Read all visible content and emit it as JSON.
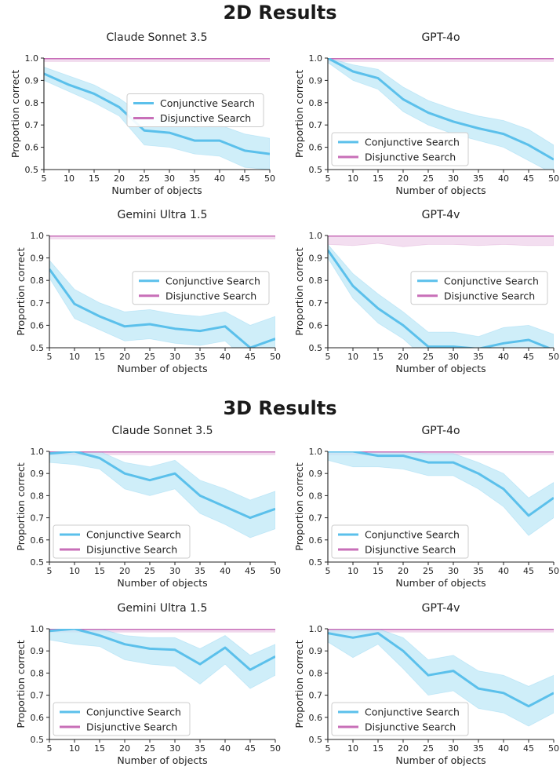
{
  "sections": [
    {
      "title": "2D Results"
    },
    {
      "title": "3D Results"
    }
  ],
  "colors": {
    "conjunctive": "#5bc0eb",
    "conjunctive_band": "#bfe8f7",
    "disjunctive": "#c86fb8",
    "disjunctive_band": "#efd3eb"
  },
  "chart_data": [
    {
      "type": "line",
      "section": "2D Results",
      "title": "Claude Sonnet 3.5",
      "xlabel": "Number of objects",
      "ylabel": "Proportion correct",
      "x": [
        5,
        10,
        15,
        20,
        25,
        30,
        35,
        40,
        45,
        50
      ],
      "xticks": [
        5,
        10,
        15,
        20,
        25,
        30,
        35,
        40,
        45,
        50
      ],
      "yticks": [
        "0.5",
        "0.6",
        "0.7",
        "0.8",
        "0.9",
        "1.0"
      ],
      "ylim": [
        0.5,
        1.0
      ],
      "legend": "center-right",
      "series": [
        {
          "name": "Conjunctive Search",
          "color": "#5bc0eb",
          "values": [
            0.93,
            0.88,
            0.84,
            0.78,
            0.675,
            0.665,
            0.63,
            0.63,
            0.585,
            0.57
          ],
          "lower": [
            0.9,
            0.85,
            0.8,
            0.74,
            0.61,
            0.6,
            0.57,
            0.56,
            0.51,
            0.5
          ],
          "upper": [
            0.96,
            0.92,
            0.88,
            0.82,
            0.74,
            0.73,
            0.69,
            0.7,
            0.66,
            0.64
          ]
        },
        {
          "name": "Disjunctive Search",
          "color": "#c86fb8",
          "values": [
            1.0,
            1.0,
            1.0,
            1.0,
            1.0,
            1.0,
            1.0,
            1.0,
            1.0,
            1.0
          ],
          "lower": [
            0.985,
            0.985,
            0.985,
            0.985,
            0.985,
            0.985,
            0.985,
            0.985,
            0.985,
            0.985
          ],
          "upper": [
            1.0,
            1.0,
            1.0,
            1.0,
            1.0,
            1.0,
            1.0,
            1.0,
            1.0,
            1.0
          ]
        }
      ]
    },
    {
      "type": "line",
      "section": "2D Results",
      "title": "GPT-4o",
      "xlabel": "Number of objects",
      "ylabel": "Proportion correct",
      "x": [
        5,
        10,
        15,
        20,
        25,
        30,
        35,
        40,
        45,
        50
      ],
      "xticks": [
        5,
        10,
        15,
        20,
        25,
        30,
        35,
        40,
        45,
        50
      ],
      "yticks": [
        "0.5",
        "0.6",
        "0.7",
        "0.8",
        "0.9",
        "1.0"
      ],
      "ylim": [
        0.5,
        1.0
      ],
      "legend": "bottom-left",
      "series": [
        {
          "name": "Conjunctive Search",
          "color": "#5bc0eb",
          "values": [
            1.0,
            0.94,
            0.91,
            0.815,
            0.755,
            0.715,
            0.685,
            0.66,
            0.61,
            0.545
          ],
          "lower": [
            0.98,
            0.9,
            0.86,
            0.76,
            0.7,
            0.66,
            0.63,
            0.6,
            0.54,
            0.48
          ],
          "upper": [
            1.0,
            0.97,
            0.95,
            0.87,
            0.81,
            0.77,
            0.74,
            0.72,
            0.68,
            0.61
          ]
        },
        {
          "name": "Disjunctive Search",
          "color": "#c86fb8",
          "values": [
            1.0,
            1.0,
            1.0,
            1.0,
            1.0,
            1.0,
            1.0,
            1.0,
            1.0,
            1.0
          ],
          "lower": [
            0.985,
            0.985,
            0.985,
            0.985,
            0.985,
            0.985,
            0.985,
            0.985,
            0.985,
            0.985
          ],
          "upper": [
            1.0,
            1.0,
            1.0,
            1.0,
            1.0,
            1.0,
            1.0,
            1.0,
            1.0,
            1.0
          ]
        }
      ]
    },
    {
      "type": "line",
      "section": "2D Results",
      "title": "Gemini Ultra 1.5",
      "xlabel": "Number of objects",
      "ylabel": "Proportion correct",
      "x": [
        5,
        10,
        15,
        20,
        25,
        30,
        35,
        40,
        45,
        50
      ],
      "xticks": [
        5,
        10,
        15,
        20,
        25,
        30,
        35,
        40,
        45,
        50
      ],
      "yticks": [
        "0.5",
        "0.6",
        "0.7",
        "0.8",
        "0.9",
        "1.0"
      ],
      "ylim": [
        0.5,
        1.0
      ],
      "legend": "center-right",
      "series": [
        {
          "name": "Conjunctive Search",
          "color": "#5bc0eb",
          "values": [
            0.85,
            0.695,
            0.64,
            0.595,
            0.605,
            0.585,
            0.575,
            0.595,
            0.5,
            0.54
          ],
          "lower": [
            0.81,
            0.63,
            0.58,
            0.53,
            0.54,
            0.52,
            0.51,
            0.53,
            0.43,
            0.47
          ],
          "upper": [
            0.89,
            0.76,
            0.7,
            0.66,
            0.67,
            0.65,
            0.64,
            0.66,
            0.6,
            0.64
          ]
        },
        {
          "name": "Disjunctive Search",
          "color": "#c86fb8",
          "values": [
            1.0,
            1.0,
            1.0,
            1.0,
            1.0,
            1.0,
            1.0,
            1.0,
            1.0,
            1.0
          ],
          "lower": [
            0.985,
            0.985,
            0.985,
            0.985,
            0.985,
            0.985,
            0.985,
            0.985,
            0.985,
            0.985
          ],
          "upper": [
            1.0,
            1.0,
            1.0,
            1.0,
            1.0,
            1.0,
            1.0,
            1.0,
            1.0,
            1.0
          ]
        }
      ]
    },
    {
      "type": "line",
      "section": "2D Results",
      "title": "GPT-4v",
      "xlabel": "Number of objects",
      "ylabel": "Proportion correct",
      "x": [
        5,
        10,
        15,
        20,
        25,
        30,
        35,
        40,
        45,
        50
      ],
      "xticks": [
        5,
        10,
        15,
        20,
        25,
        30,
        35,
        40,
        45,
        50
      ],
      "yticks": [
        "0.5",
        "0.6",
        "0.7",
        "0.8",
        "0.9",
        "1.0"
      ],
      "ylim": [
        0.5,
        1.0
      ],
      "legend": "center-right",
      "series": [
        {
          "name": "Conjunctive Search",
          "color": "#5bc0eb",
          "values": [
            0.935,
            0.775,
            0.675,
            0.6,
            0.505,
            0.505,
            0.495,
            0.52,
            0.535,
            0.49
          ],
          "lower": [
            0.9,
            0.72,
            0.61,
            0.54,
            0.44,
            0.44,
            0.43,
            0.45,
            0.47,
            0.43
          ],
          "upper": [
            0.96,
            0.83,
            0.74,
            0.66,
            0.57,
            0.57,
            0.55,
            0.59,
            0.6,
            0.56
          ]
        },
        {
          "name": "Disjunctive Search",
          "color": "#c86fb8",
          "values": [
            1.0,
            1.0,
            1.0,
            1.0,
            1.0,
            1.0,
            1.0,
            1.0,
            1.0,
            1.0
          ],
          "lower": [
            0.96,
            0.955,
            0.965,
            0.95,
            0.96,
            0.96,
            0.955,
            0.96,
            0.955,
            0.955
          ],
          "upper": [
            1.0,
            1.0,
            1.0,
            1.0,
            1.0,
            1.0,
            1.0,
            1.0,
            1.0,
            1.0
          ]
        }
      ]
    },
    {
      "type": "line",
      "section": "3D Results",
      "title": "Claude Sonnet 3.5",
      "xlabel": "Number of objects",
      "ylabel": "Proportion correct",
      "x": [
        5,
        10,
        15,
        20,
        25,
        30,
        35,
        40,
        45,
        50
      ],
      "xticks": [
        5,
        10,
        15,
        20,
        25,
        30,
        35,
        40,
        45,
        50
      ],
      "yticks": [
        "0.5",
        "0.6",
        "0.7",
        "0.8",
        "0.9",
        "1.0"
      ],
      "ylim": [
        0.5,
        1.0
      ],
      "legend": "bottom-left",
      "series": [
        {
          "name": "Conjunctive Search",
          "color": "#5bc0eb",
          "values": [
            0.99,
            1.0,
            0.97,
            0.9,
            0.87,
            0.9,
            0.8,
            0.75,
            0.7,
            0.74
          ],
          "lower": [
            0.95,
            0.94,
            0.92,
            0.83,
            0.8,
            0.83,
            0.72,
            0.67,
            0.61,
            0.65
          ],
          "upper": [
            1.0,
            1.0,
            1.0,
            0.95,
            0.93,
            0.96,
            0.87,
            0.83,
            0.78,
            0.82
          ]
        },
        {
          "name": "Disjunctive Search",
          "color": "#c86fb8",
          "values": [
            1.0,
            1.0,
            1.0,
            1.0,
            1.0,
            1.0,
            1.0,
            1.0,
            1.0,
            1.0
          ],
          "lower": [
            0.985,
            0.985,
            0.985,
            0.985,
            0.985,
            0.985,
            0.985,
            0.985,
            0.985,
            0.985
          ],
          "upper": [
            1.0,
            1.0,
            1.0,
            1.0,
            1.0,
            1.0,
            1.0,
            1.0,
            1.0,
            1.0
          ]
        }
      ]
    },
    {
      "type": "line",
      "section": "3D Results",
      "title": "GPT-4o",
      "xlabel": "Number of objects",
      "ylabel": "Proportion correct",
      "x": [
        5,
        10,
        15,
        20,
        25,
        30,
        35,
        40,
        45,
        50
      ],
      "xticks": [
        5,
        10,
        15,
        20,
        25,
        30,
        35,
        40,
        45,
        50
      ],
      "yticks": [
        "0.5",
        "0.6",
        "0.7",
        "0.8",
        "0.9",
        "1.0"
      ],
      "ylim": [
        0.5,
        1.0
      ],
      "legend": "bottom-left",
      "series": [
        {
          "name": "Conjunctive Search",
          "color": "#5bc0eb",
          "values": [
            1.0,
            1.0,
            0.98,
            0.98,
            0.95,
            0.95,
            0.9,
            0.83,
            0.71,
            0.79
          ],
          "lower": [
            0.96,
            0.93,
            0.93,
            0.92,
            0.89,
            0.89,
            0.83,
            0.75,
            0.62,
            0.7
          ],
          "upper": [
            1.0,
            1.0,
            1.0,
            1.0,
            0.99,
            0.99,
            0.95,
            0.9,
            0.79,
            0.86
          ]
        },
        {
          "name": "Disjunctive Search",
          "color": "#c86fb8",
          "values": [
            1.0,
            1.0,
            1.0,
            1.0,
            1.0,
            1.0,
            1.0,
            1.0,
            1.0,
            1.0
          ],
          "lower": [
            0.985,
            0.985,
            0.985,
            0.985,
            0.985,
            0.985,
            0.985,
            0.985,
            0.985,
            0.985
          ],
          "upper": [
            1.0,
            1.0,
            1.0,
            1.0,
            1.0,
            1.0,
            1.0,
            1.0,
            1.0,
            1.0
          ]
        }
      ]
    },
    {
      "type": "line",
      "section": "3D Results",
      "title": "Gemini Ultra 1.5",
      "xlabel": "Number of objects",
      "ylabel": "Proportion correct",
      "x": [
        5,
        10,
        15,
        20,
        25,
        30,
        35,
        40,
        45,
        50
      ],
      "xticks": [
        5,
        10,
        15,
        20,
        25,
        30,
        35,
        40,
        45,
        50
      ],
      "yticks": [
        "0.5",
        "0.6",
        "0.7",
        "0.8",
        "0.9",
        "1.0"
      ],
      "ylim": [
        0.5,
        1.0
      ],
      "legend": "bottom-left",
      "series": [
        {
          "name": "Conjunctive Search",
          "color": "#5bc0eb",
          "values": [
            0.99,
            1.0,
            0.97,
            0.93,
            0.91,
            0.905,
            0.84,
            0.915,
            0.815,
            0.875
          ],
          "lower": [
            0.95,
            0.93,
            0.92,
            0.86,
            0.84,
            0.83,
            0.75,
            0.84,
            0.73,
            0.79
          ],
          "upper": [
            1.0,
            1.0,
            1.0,
            0.97,
            0.96,
            0.96,
            0.91,
            0.97,
            0.88,
            0.93
          ]
        },
        {
          "name": "Disjunctive Search",
          "color": "#c86fb8",
          "values": [
            1.0,
            1.0,
            1.0,
            1.0,
            1.0,
            1.0,
            1.0,
            1.0,
            1.0,
            1.0
          ],
          "lower": [
            0.985,
            0.985,
            0.985,
            0.985,
            0.985,
            0.985,
            0.985,
            0.985,
            0.985,
            0.985
          ],
          "upper": [
            1.0,
            1.0,
            1.0,
            1.0,
            1.0,
            1.0,
            1.0,
            1.0,
            1.0,
            1.0
          ]
        }
      ]
    },
    {
      "type": "line",
      "section": "3D Results",
      "title": "GPT-4v",
      "xlabel": "Number of objects",
      "ylabel": "Proportion correct",
      "x": [
        5,
        10,
        15,
        20,
        25,
        30,
        35,
        40,
        45,
        50
      ],
      "xticks": [
        5,
        10,
        15,
        20,
        25,
        30,
        35,
        40,
        45,
        50
      ],
      "yticks": [
        "0.5",
        "0.6",
        "0.7",
        "0.8",
        "0.9",
        "1.0"
      ],
      "ylim": [
        0.5,
        1.0
      ],
      "legend": "bottom-left",
      "series": [
        {
          "name": "Conjunctive Search",
          "color": "#5bc0eb",
          "values": [
            0.98,
            0.96,
            0.98,
            0.9,
            0.79,
            0.81,
            0.73,
            0.71,
            0.65,
            0.71
          ],
          "lower": [
            0.94,
            0.87,
            0.93,
            0.82,
            0.7,
            0.72,
            0.64,
            0.62,
            0.56,
            0.62
          ],
          "upper": [
            1.0,
            1.0,
            1.0,
            0.96,
            0.86,
            0.88,
            0.81,
            0.79,
            0.74,
            0.79
          ]
        },
        {
          "name": "Disjunctive Search",
          "color": "#c86fb8",
          "values": [
            1.0,
            1.0,
            1.0,
            1.0,
            1.0,
            1.0,
            1.0,
            1.0,
            1.0,
            1.0
          ],
          "lower": [
            0.985,
            0.985,
            0.985,
            0.985,
            0.985,
            0.985,
            0.985,
            0.985,
            0.985,
            0.985
          ],
          "upper": [
            1.0,
            1.0,
            1.0,
            1.0,
            1.0,
            1.0,
            1.0,
            1.0,
            1.0,
            1.0
          ]
        }
      ]
    }
  ]
}
